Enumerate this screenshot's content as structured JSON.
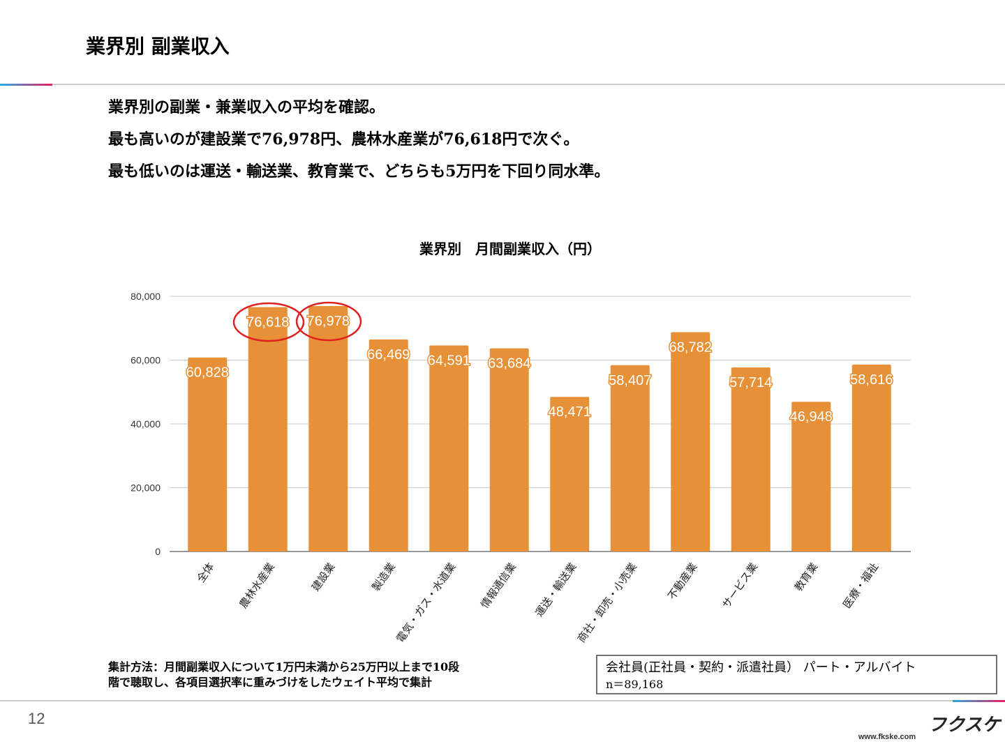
{
  "header": {
    "title": "業界別 副業収入"
  },
  "lines": [
    "業界別の副業・兼業収入の平均を確認。",
    "最も高いのが建設業で76,978円、農林水産業が76,618円で次ぐ。",
    "最も低いのは運送・輸送業、教育業で、どちらも5万円を下回り同水準。"
  ],
  "chart_data": {
    "type": "bar",
    "title": "業界別　月間副業収入（円）",
    "categories": [
      "全体",
      "農林水産業",
      "建設業",
      "製造業",
      "電気・ガス・水道業",
      "情報通信業",
      "運送・輸送業",
      "商社・卸売・小売業",
      "不動産業",
      "サービス業",
      "教育業",
      "医療・福祉"
    ],
    "values": [
      60828,
      76618,
      76978,
      66469,
      64591,
      63684,
      48471,
      58407,
      68782,
      57714,
      46948,
      58616
    ],
    "value_labels": [
      "60,828",
      "76,618",
      "76,978",
      "66,469",
      "64,591",
      "63,684",
      "48,471",
      "58,407",
      "68,782",
      "57,714",
      "46,948",
      "58,616"
    ],
    "color": "#e69138",
    "ylim": [
      0,
      80000
    ],
    "yticks": [
      0,
      {
        "value": 20000,
        "label": "20,000"
      },
      {
        "value": 40000,
        "label": "40,000"
      },
      {
        "value": 60000,
        "label": "60,000"
      },
      {
        "value": 80000,
        "label": "80,000"
      }
    ],
    "grid": true
  },
  "note": [
    "集計方法：月間副業収入について1万円未満から25万円以上まで10段",
    "階で聴取し、各項目選択率に重みづけをしたウェイト平均で集計"
  ],
  "sample": [
    "会社員(正社員・契約・派遣社員） パート・アルバイト",
    "n＝89,168"
  ],
  "footer": {
    "page": "12",
    "logo": "フクスケ",
    "url": "www.fkske.com"
  }
}
